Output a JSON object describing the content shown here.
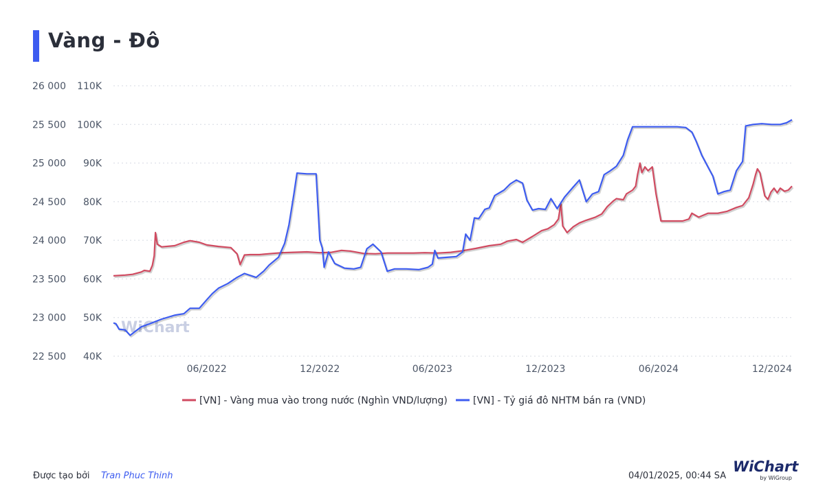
{
  "page": {
    "title": "Vàng - Đô",
    "created_by_label": "Được tạo bởi",
    "author": "Tran Phuc Thinh",
    "timestamp": "04/01/2025, 00:44 SA",
    "logo_text": "WiChart",
    "logo_sub": "by WiGroup",
    "watermark": "WiChart"
  },
  "chart_data": {
    "type": "line",
    "title": "Vàng - Đô",
    "x_ticks": [
      "06/2022",
      "12/2022",
      "06/2023",
      "12/2023",
      "06/2024",
      "12/2024"
    ],
    "x_range": [
      "2022-01-01",
      "2025-01-03"
    ],
    "y_left": {
      "ticks": [
        "22 500",
        "23 000",
        "23 500",
        "24 000",
        "24 500",
        "25 000",
        "25 500",
        "26 000"
      ],
      "range": [
        22500,
        26000
      ],
      "series": "[VN] - Tỷ giá đô NHTM bán ra (VND)"
    },
    "y_right": {
      "ticks": [
        "40K",
        "50K",
        "60K",
        "70K",
        "80K",
        "90K",
        "100K",
        "110K"
      ],
      "range": [
        40000,
        110000
      ],
      "series": "[VN] - Vàng mua vào trong nước (Nghìn VND/lượng)"
    },
    "grid": true,
    "legend_position": "bottom-center",
    "series": [
      {
        "name": "[VN] - Vàng mua vào trong nước (Nghìn VND/lượng)",
        "axis": "right",
        "color": "#d04a60",
        "points": [
          [
            "2022-01-01",
            60800
          ],
          [
            "2022-01-20",
            61000
          ],
          [
            "2022-02-01",
            61200
          ],
          [
            "2022-02-15",
            61800
          ],
          [
            "2022-02-20",
            62200
          ],
          [
            "2022-03-01",
            62000
          ],
          [
            "2022-03-05",
            63500
          ],
          [
            "2022-03-08",
            66000
          ],
          [
            "2022-03-10",
            72000
          ],
          [
            "2022-03-13",
            69000
          ],
          [
            "2022-03-20",
            68300
          ],
          [
            "2022-04-10",
            68600
          ],
          [
            "2022-04-25",
            69500
          ],
          [
            "2022-05-05",
            69900
          ],
          [
            "2022-05-20",
            69500
          ],
          [
            "2022-06-01",
            68800
          ],
          [
            "2022-06-20",
            68400
          ],
          [
            "2022-07-10",
            68100
          ],
          [
            "2022-07-20",
            66500
          ],
          [
            "2022-07-25",
            63700
          ],
          [
            "2022-08-01",
            66200
          ],
          [
            "2022-08-10",
            66300
          ],
          [
            "2022-08-25",
            66300
          ],
          [
            "2022-09-15",
            66600
          ],
          [
            "2022-10-01",
            66800
          ],
          [
            "2022-10-20",
            66900
          ],
          [
            "2022-11-10",
            67000
          ],
          [
            "2022-12-01",
            66800
          ],
          [
            "2022-12-20",
            66900
          ],
          [
            "2023-01-05",
            67400
          ],
          [
            "2023-01-20",
            67200
          ],
          [
            "2023-02-10",
            66600
          ],
          [
            "2023-03-01",
            66500
          ],
          [
            "2023-03-20",
            66700
          ],
          [
            "2023-04-10",
            66700
          ],
          [
            "2023-05-01",
            66700
          ],
          [
            "2023-05-20",
            66800
          ],
          [
            "2023-06-10",
            66700
          ],
          [
            "2023-07-01",
            66900
          ],
          [
            "2023-07-20",
            67300
          ],
          [
            "2023-08-10",
            67900
          ],
          [
            "2023-09-01",
            68600
          ],
          [
            "2023-09-20",
            69000
          ],
          [
            "2023-10-01",
            69800
          ],
          [
            "2023-10-15",
            70200
          ],
          [
            "2023-10-25",
            69500
          ],
          [
            "2023-11-10",
            71000
          ],
          [
            "2023-11-25",
            72500
          ],
          [
            "2023-12-05",
            73000
          ],
          [
            "2023-12-15",
            74000
          ],
          [
            "2023-12-22",
            75500
          ],
          [
            "2023-12-26",
            79500
          ],
          [
            "2023-12-29",
            73700
          ],
          [
            "2024-01-05",
            72000
          ],
          [
            "2024-01-15",
            73500
          ],
          [
            "2024-01-25",
            74500
          ],
          [
            "2024-02-05",
            75200
          ],
          [
            "2024-02-20",
            76000
          ],
          [
            "2024-03-01",
            76800
          ],
          [
            "2024-03-10",
            78700
          ],
          [
            "2024-03-20",
            80200
          ],
          [
            "2024-03-25",
            80800
          ],
          [
            "2024-04-05",
            80500
          ],
          [
            "2024-04-10",
            82000
          ],
          [
            "2024-04-20",
            83000
          ],
          [
            "2024-04-25",
            84000
          ],
          [
            "2024-04-28",
            87000
          ],
          [
            "2024-05-02",
            90000
          ],
          [
            "2024-05-05",
            87500
          ],
          [
            "2024-05-10",
            89000
          ],
          [
            "2024-05-15",
            88000
          ],
          [
            "2024-05-22",
            89000
          ],
          [
            "2024-05-28",
            82000
          ],
          [
            "2024-06-05",
            75000
          ],
          [
            "2024-06-20",
            75000
          ],
          [
            "2024-07-10",
            75000
          ],
          [
            "2024-07-20",
            75500
          ],
          [
            "2024-07-25",
            77000
          ],
          [
            "2024-08-05",
            76000
          ],
          [
            "2024-08-20",
            77000
          ],
          [
            "2024-09-05",
            77000
          ],
          [
            "2024-09-20",
            77500
          ],
          [
            "2024-10-05",
            78500
          ],
          [
            "2024-10-15",
            79000
          ],
          [
            "2024-10-25",
            81000
          ],
          [
            "2024-11-01",
            84500
          ],
          [
            "2024-11-05",
            87000
          ],
          [
            "2024-11-08",
            88500
          ],
          [
            "2024-11-12",
            87500
          ],
          [
            "2024-11-20",
            81500
          ],
          [
            "2024-11-25",
            80600
          ],
          [
            "2024-11-30",
            82500
          ],
          [
            "2024-12-05",
            83500
          ],
          [
            "2024-12-10",
            82300
          ],
          [
            "2024-12-15",
            83500
          ],
          [
            "2024-12-22",
            82700
          ],
          [
            "2024-12-28",
            83000
          ],
          [
            "2025-01-03",
            84000
          ]
        ]
      },
      {
        "name": "[VN] - Tỷ giá đô NHTM bán ra (VND)",
        "axis": "left",
        "color": "#3d5cf0",
        "points": [
          [
            "2022-01-01",
            22930
          ],
          [
            "2022-01-05",
            22920
          ],
          [
            "2022-01-10",
            22850
          ],
          [
            "2022-01-20",
            22840
          ],
          [
            "2022-01-28",
            22770
          ],
          [
            "2022-02-05",
            22820
          ],
          [
            "2022-02-15",
            22880
          ],
          [
            "2022-03-01",
            22920
          ],
          [
            "2022-03-20",
            22980
          ],
          [
            "2022-04-10",
            23030
          ],
          [
            "2022-04-25",
            23050
          ],
          [
            "2022-05-05",
            23120
          ],
          [
            "2022-05-20",
            23120
          ],
          [
            "2022-06-01",
            23230
          ],
          [
            "2022-06-10",
            23310
          ],
          [
            "2022-06-20",
            23380
          ],
          [
            "2022-07-05",
            23440
          ],
          [
            "2022-07-20",
            23520
          ],
          [
            "2022-08-01",
            23570
          ],
          [
            "2022-08-20",
            23520
          ],
          [
            "2022-09-01",
            23600
          ],
          [
            "2022-09-10",
            23680
          ],
          [
            "2022-09-25",
            23780
          ],
          [
            "2022-10-05",
            23960
          ],
          [
            "2022-10-12",
            24200
          ],
          [
            "2022-10-20",
            24600
          ],
          [
            "2022-10-25",
            24870
          ],
          [
            "2022-11-10",
            24860
          ],
          [
            "2022-11-25",
            24860
          ],
          [
            "2022-12-01",
            24000
          ],
          [
            "2022-12-05",
            23900
          ],
          [
            "2022-12-08",
            23650
          ],
          [
            "2022-12-15",
            23850
          ],
          [
            "2022-12-25",
            23700
          ],
          [
            "2023-01-10",
            23640
          ],
          [
            "2023-01-25",
            23630
          ],
          [
            "2023-02-05",
            23650
          ],
          [
            "2023-02-15",
            23890
          ],
          [
            "2023-02-25",
            23950
          ],
          [
            "2023-03-10",
            23850
          ],
          [
            "2023-03-20",
            23600
          ],
          [
            "2023-04-01",
            23630
          ],
          [
            "2023-04-20",
            23630
          ],
          [
            "2023-05-10",
            23620
          ],
          [
            "2023-05-25",
            23650
          ],
          [
            "2023-06-01",
            23690
          ],
          [
            "2023-06-05",
            23870
          ],
          [
            "2023-06-10",
            23770
          ],
          [
            "2023-06-25",
            23780
          ],
          [
            "2023-07-10",
            23790
          ],
          [
            "2023-07-20",
            23850
          ],
          [
            "2023-07-25",
            24080
          ],
          [
            "2023-08-01",
            24000
          ],
          [
            "2023-08-08",
            24290
          ],
          [
            "2023-08-15",
            24280
          ],
          [
            "2023-08-25",
            24400
          ],
          [
            "2023-09-01",
            24420
          ],
          [
            "2023-09-10",
            24580
          ],
          [
            "2023-09-25",
            24650
          ],
          [
            "2023-10-05",
            24730
          ],
          [
            "2023-10-15",
            24780
          ],
          [
            "2023-10-25",
            24740
          ],
          [
            "2023-11-01",
            24520
          ],
          [
            "2023-11-10",
            24390
          ],
          [
            "2023-11-20",
            24410
          ],
          [
            "2023-12-01",
            24400
          ],
          [
            "2023-12-10",
            24540
          ],
          [
            "2023-12-20",
            24410
          ],
          [
            "2024-01-01",
            24560
          ],
          [
            "2024-01-15",
            24690
          ],
          [
            "2024-01-25",
            24780
          ],
          [
            "2024-02-05",
            24500
          ],
          [
            "2024-02-15",
            24600
          ],
          [
            "2024-02-25",
            24630
          ],
          [
            "2024-03-05",
            24850
          ],
          [
            "2024-03-15",
            24900
          ],
          [
            "2024-03-25",
            24960
          ],
          [
            "2024-04-05",
            25100
          ],
          [
            "2024-04-12",
            25300
          ],
          [
            "2024-04-20",
            25470
          ],
          [
            "2024-05-01",
            25470
          ],
          [
            "2024-05-20",
            25470
          ],
          [
            "2024-06-10",
            25470
          ],
          [
            "2024-07-01",
            25470
          ],
          [
            "2024-07-15",
            25460
          ],
          [
            "2024-07-25",
            25400
          ],
          [
            "2024-08-01",
            25280
          ],
          [
            "2024-08-10",
            25100
          ],
          [
            "2024-08-20",
            24950
          ],
          [
            "2024-08-28",
            24830
          ],
          [
            "2024-09-05",
            24600
          ],
          [
            "2024-09-15",
            24630
          ],
          [
            "2024-09-25",
            24650
          ],
          [
            "2024-10-05",
            24900
          ],
          [
            "2024-10-15",
            25020
          ],
          [
            "2024-10-20",
            25480
          ],
          [
            "2024-11-01",
            25500
          ],
          [
            "2024-11-15",
            25510
          ],
          [
            "2024-12-01",
            25500
          ],
          [
            "2024-12-15",
            25500
          ],
          [
            "2024-12-25",
            25520
          ],
          [
            "2025-01-03",
            25560
          ]
        ]
      }
    ]
  }
}
